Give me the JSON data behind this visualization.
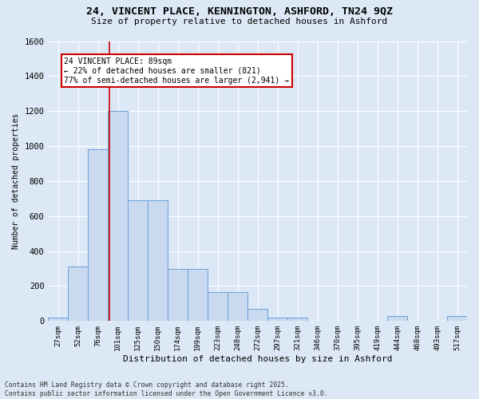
{
  "title": "24, VINCENT PLACE, KENNINGTON, ASHFORD, TN24 9QZ",
  "subtitle": "Size of property relative to detached houses in Ashford",
  "xlabel": "Distribution of detached houses by size in Ashford",
  "ylabel": "Number of detached properties",
  "categories": [
    "27sqm",
    "52sqm",
    "76sqm",
    "101sqm",
    "125sqm",
    "150sqm",
    "174sqm",
    "199sqm",
    "223sqm",
    "248sqm",
    "272sqm",
    "297sqm",
    "321sqm",
    "346sqm",
    "370sqm",
    "395sqm",
    "419sqm",
    "444sqm",
    "468sqm",
    "493sqm",
    "517sqm"
  ],
  "values": [
    20,
    310,
    980,
    1200,
    690,
    690,
    300,
    300,
    165,
    165,
    70,
    20,
    20,
    0,
    0,
    0,
    0,
    30,
    0,
    0,
    30
  ],
  "bar_color": "#c9d9ef",
  "bar_edge_color": "#6a9fd8",
  "vline_x": 2.55,
  "vline_color": "#cc0000",
  "annotation_text": "24 VINCENT PLACE: 89sqm\n← 22% of detached houses are smaller (821)\n77% of semi-detached houses are larger (2,941) →",
  "annotation_box_color": "#ffffff",
  "annotation_box_edge": "#cc0000",
  "bg_color": "#dce8f5",
  "plot_bg_color": "#dce8f5",
  "grid_color": "#ffffff",
  "footnote": "Contains HM Land Registry data © Crown copyright and database right 2025.\nContains public sector information licensed under the Open Government Licence v3.0.",
  "ylim": [
    0,
    1600
  ],
  "yticks": [
    0,
    200,
    400,
    600,
    800,
    1000,
    1200,
    1400,
    1600
  ]
}
